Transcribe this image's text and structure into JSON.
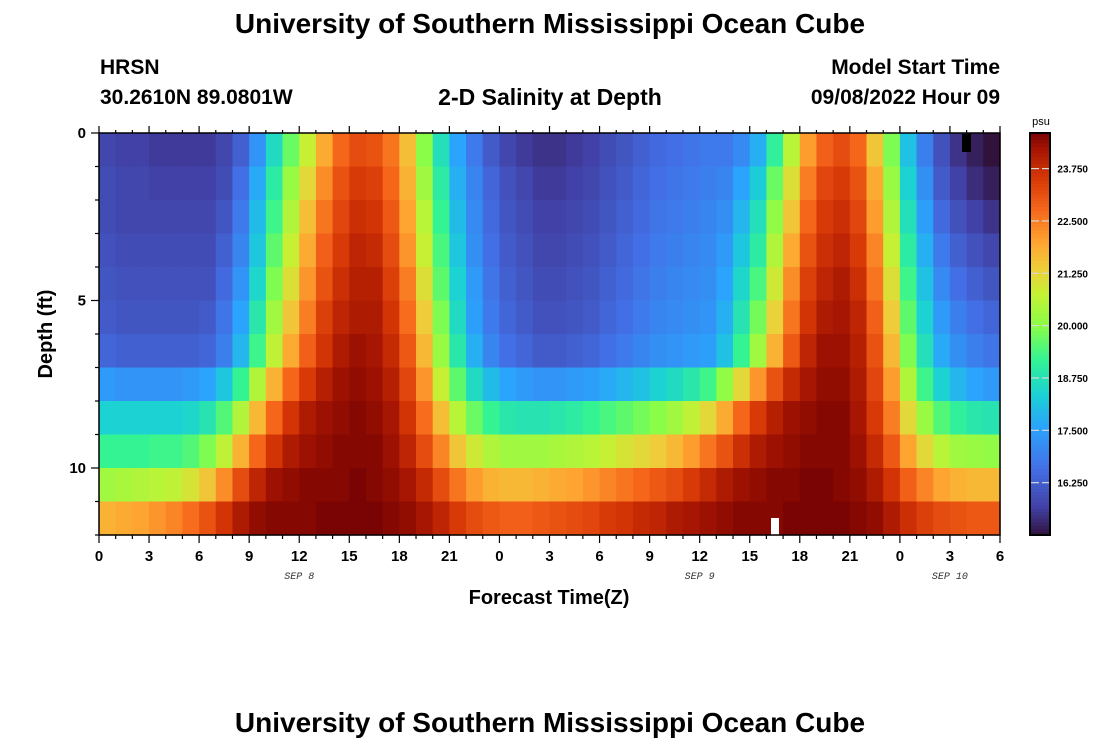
{
  "header": {
    "title": "University of Southern Mississippi Ocean Cube",
    "station": "HRSN",
    "coords": "30.2610N  89.0801W",
    "subtitle": "2-D Salinity at Depth",
    "model_start_label": "Model Start Time",
    "model_start_value": "09/08/2022 Hour 09"
  },
  "footer": {
    "title": "University of Southern Mississippi Ocean Cube"
  },
  "chart_data": {
    "type": "heatmap",
    "title": "2-D Salinity at Depth",
    "xlabel": "Forecast Time(Z)",
    "ylabel": "Depth (ft)",
    "x_tick_labels": [
      "0",
      "3",
      "6",
      "9",
      "12",
      "15",
      "18",
      "21",
      "0",
      "3",
      "6",
      "9",
      "12",
      "15",
      "18",
      "21",
      "0",
      "3",
      "6"
    ],
    "x_start_hour": 0,
    "x_end_hour": 54,
    "date_labels": [
      {
        "label": "SEP 8",
        "hour": 12
      },
      {
        "label": "SEP 9",
        "hour": 36
      },
      {
        "label": "SEP 10",
        "hour": 51
      }
    ],
    "y_ticks": [
      0,
      5,
      10
    ],
    "ylim": [
      0,
      12
    ],
    "colorbar": {
      "unit": "psu",
      "min": 15.0,
      "max": 24.6,
      "tick_values": [
        23.75,
        22.5,
        21.25,
        20.0,
        18.75,
        17.5,
        16.25
      ],
      "tick_labels": [
        "23.750",
        "22.500",
        "21.250",
        "20.000",
        "18.750",
        "17.500",
        "16.250"
      ]
    },
    "depth_bins_ft": [
      0.5,
      1.5,
      2.5,
      3.5,
      4.5,
      5.5,
      6.5,
      7.5,
      8.5,
      9.5,
      10.5,
      11.5
    ],
    "hours_per_column": 1,
    "values": [
      [
        15.8,
        15.7,
        15.7,
        15.6,
        15.6,
        15.6,
        15.6,
        15.8,
        16.3,
        17.3,
        18.6,
        19.7,
        20.8,
        21.9,
        22.8,
        23.2,
        23.1,
        22.6,
        21.6,
        20.0,
        18.7,
        17.6,
        16.8,
        16.2,
        15.8,
        15.6,
        15.5,
        15.5,
        15.6,
        15.7,
        15.9,
        16.1,
        16.3,
        16.5,
        16.6,
        16.7,
        16.8,
        16.8,
        17.1,
        17.8,
        19.1,
        20.6,
        22.1,
        22.9,
        23.2,
        22.8,
        21.5,
        19.9,
        18.1,
        16.9,
        16.0,
        15.5,
        15.2,
        14.9
      ],
      [
        15.9,
        15.8,
        15.8,
        15.7,
        15.7,
        15.7,
        15.7,
        15.9,
        16.6,
        17.7,
        19.0,
        20.2,
        21.2,
        22.3,
        23.1,
        23.5,
        23.4,
        22.8,
        21.8,
        20.3,
        19.0,
        17.8,
        17.0,
        16.4,
        16.0,
        15.8,
        15.6,
        15.6,
        15.7,
        15.8,
        16.0,
        16.2,
        16.4,
        16.6,
        16.7,
        16.8,
        16.9,
        17.0,
        17.6,
        18.3,
        19.7,
        21.1,
        22.5,
        23.3,
        23.5,
        23.1,
        21.9,
        20.2,
        18.4,
        17.2,
        16.2,
        15.7,
        15.4,
        15.2
      ],
      [
        15.9,
        15.8,
        15.8,
        15.8,
        15.8,
        15.8,
        15.8,
        16.1,
        16.8,
        18.0,
        19.3,
        20.5,
        21.6,
        22.6,
        23.3,
        23.7,
        23.6,
        23.0,
        22.0,
        20.6,
        19.2,
        18.0,
        17.1,
        16.5,
        16.1,
        15.9,
        15.7,
        15.7,
        15.8,
        15.9,
        16.1,
        16.3,
        16.5,
        16.7,
        16.8,
        16.9,
        17.0,
        17.2,
        17.9,
        18.7,
        20.1,
        21.5,
        22.8,
        23.5,
        23.7,
        23.3,
        22.1,
        20.5,
        18.7,
        17.5,
        16.5,
        16.0,
        15.7,
        15.5
      ],
      [
        16.0,
        15.9,
        15.9,
        15.9,
        15.9,
        15.9,
        15.9,
        16.3,
        17.0,
        18.2,
        19.6,
        20.8,
        21.9,
        22.9,
        23.5,
        23.9,
        23.8,
        23.2,
        22.2,
        20.8,
        19.4,
        18.2,
        17.2,
        16.6,
        16.2,
        16.0,
        15.8,
        15.8,
        15.9,
        16.0,
        16.2,
        16.4,
        16.6,
        16.8,
        16.9,
        17.0,
        17.1,
        17.4,
        18.2,
        19.0,
        20.5,
        21.9,
        23.1,
        23.7,
        23.9,
        23.5,
        22.4,
        20.8,
        19.0,
        17.8,
        16.8,
        16.3,
        16.0,
        15.8
      ],
      [
        16.1,
        16.0,
        16.0,
        16.0,
        16.0,
        16.0,
        16.0,
        16.5,
        17.3,
        18.5,
        19.9,
        21.1,
        22.2,
        23.1,
        23.7,
        24.0,
        24.0,
        23.4,
        22.5,
        21.1,
        19.6,
        18.4,
        17.4,
        16.7,
        16.3,
        16.1,
        15.9,
        15.9,
        16.0,
        16.1,
        16.3,
        16.5,
        16.7,
        16.9,
        17.0,
        17.1,
        17.2,
        17.6,
        18.5,
        19.4,
        20.9,
        22.3,
        23.4,
        23.9,
        24.1,
        23.7,
        22.6,
        21.1,
        19.3,
        18.1,
        17.1,
        16.6,
        16.3,
        16.1
      ],
      [
        16.2,
        16.1,
        16.1,
        16.1,
        16.1,
        16.1,
        16.2,
        16.7,
        17.6,
        18.9,
        20.3,
        21.5,
        22.5,
        23.4,
        23.9,
        24.1,
        24.1,
        23.6,
        22.7,
        21.4,
        19.9,
        18.6,
        17.5,
        16.8,
        16.4,
        16.2,
        16.0,
        16.0,
        16.1,
        16.2,
        16.4,
        16.6,
        16.8,
        17.0,
        17.1,
        17.2,
        17.3,
        17.8,
        18.8,
        19.8,
        21.3,
        22.6,
        23.6,
        24.1,
        24.2,
        23.9,
        22.9,
        21.4,
        19.6,
        18.4,
        17.4,
        16.9,
        16.6,
        16.4
      ],
      [
        16.4,
        16.3,
        16.3,
        16.3,
        16.3,
        16.3,
        16.4,
        16.9,
        17.9,
        19.3,
        20.7,
        21.9,
        22.9,
        23.6,
        24.1,
        24.3,
        24.2,
        23.8,
        23.0,
        21.7,
        20.2,
        18.9,
        17.8,
        17.0,
        16.6,
        16.4,
        16.2,
        16.2,
        16.3,
        16.4,
        16.6,
        16.8,
        17.0,
        17.2,
        17.3,
        17.4,
        17.5,
        18.1,
        19.2,
        20.3,
        21.8,
        23.0,
        23.9,
        24.3,
        24.3,
        24.0,
        23.1,
        21.7,
        19.9,
        18.7,
        17.7,
        17.2,
        16.9,
        16.7
      ],
      [
        17.4,
        17.3,
        17.3,
        17.3,
        17.3,
        17.4,
        17.6,
        18.2,
        19.2,
        20.5,
        21.8,
        22.8,
        23.5,
        24.0,
        24.3,
        24.4,
        24.3,
        24.0,
        23.3,
        22.2,
        20.8,
        19.6,
        18.6,
        18.0,
        17.6,
        17.4,
        17.3,
        17.3,
        17.4,
        17.5,
        17.7,
        17.9,
        18.1,
        18.4,
        18.6,
        18.9,
        19.3,
        20.1,
        21.2,
        22.2,
        23.1,
        23.8,
        24.2,
        24.4,
        24.4,
        24.1,
        23.3,
        22.1,
        20.5,
        19.3,
        18.4,
        17.9,
        17.6,
        17.4
      ],
      [
        18.4,
        18.4,
        18.4,
        18.4,
        18.4,
        18.5,
        18.8,
        19.5,
        20.5,
        21.7,
        22.8,
        23.6,
        24.1,
        24.3,
        24.4,
        24.5,
        24.4,
        24.2,
        23.6,
        22.7,
        21.6,
        20.6,
        19.7,
        19.2,
        18.9,
        18.8,
        18.8,
        18.9,
        19.0,
        19.2,
        19.4,
        19.6,
        19.8,
        20.0,
        20.3,
        20.7,
        21.2,
        21.9,
        22.8,
        23.5,
        24.0,
        24.3,
        24.4,
        24.5,
        24.5,
        24.2,
        23.5,
        22.5,
        21.2,
        20.2,
        19.5,
        19.1,
        18.9,
        18.8
      ],
      [
        19.2,
        19.2,
        19.2,
        19.3,
        19.3,
        19.5,
        19.9,
        20.7,
        21.8,
        22.8,
        23.6,
        24.1,
        24.3,
        24.4,
        24.5,
        24.5,
        24.5,
        24.3,
        23.9,
        23.2,
        22.4,
        21.5,
        20.9,
        20.5,
        20.3,
        20.3,
        20.3,
        20.4,
        20.5,
        20.6,
        20.8,
        21.0,
        21.2,
        21.4,
        21.7,
        22.1,
        22.6,
        23.1,
        23.7,
        24.1,
        24.3,
        24.4,
        24.5,
        24.5,
        24.5,
        24.3,
        23.8,
        23.0,
        22.0,
        21.2,
        20.6,
        20.3,
        20.2,
        20.1
      ],
      [
        20.3,
        20.4,
        20.5,
        20.6,
        20.7,
        21.0,
        21.5,
        22.3,
        23.2,
        23.9,
        24.3,
        24.4,
        24.5,
        24.5,
        24.5,
        24.6,
        24.5,
        24.4,
        24.2,
        23.8,
        23.2,
        22.6,
        22.1,
        21.8,
        21.7,
        21.7,
        21.8,
        21.9,
        22.0,
        22.2,
        22.4,
        22.6,
        22.8,
        23.0,
        23.2,
        23.5,
        23.8,
        24.1,
        24.3,
        24.4,
        24.5,
        24.5,
        24.6,
        24.6,
        24.5,
        24.4,
        24.1,
        23.6,
        22.9,
        22.4,
        22.0,
        21.8,
        21.7,
        21.7
      ],
      [
        21.8,
        21.9,
        22.0,
        22.2,
        22.4,
        22.7,
        23.1,
        23.6,
        24.1,
        24.4,
        24.5,
        24.5,
        24.5,
        24.6,
        24.6,
        24.6,
        24.6,
        24.5,
        24.4,
        24.2,
        23.9,
        23.5,
        23.2,
        23.0,
        22.9,
        22.9,
        23.0,
        23.1,
        23.2,
        23.3,
        23.5,
        23.6,
        23.8,
        23.9,
        24.1,
        24.2,
        24.3,
        24.4,
        24.5,
        24.5,
        24.5,
        24.6,
        24.6,
        24.6,
        24.6,
        24.5,
        24.4,
        24.1,
        23.7,
        23.4,
        23.2,
        23.1,
        23.0,
        23.0
      ]
    ]
  }
}
